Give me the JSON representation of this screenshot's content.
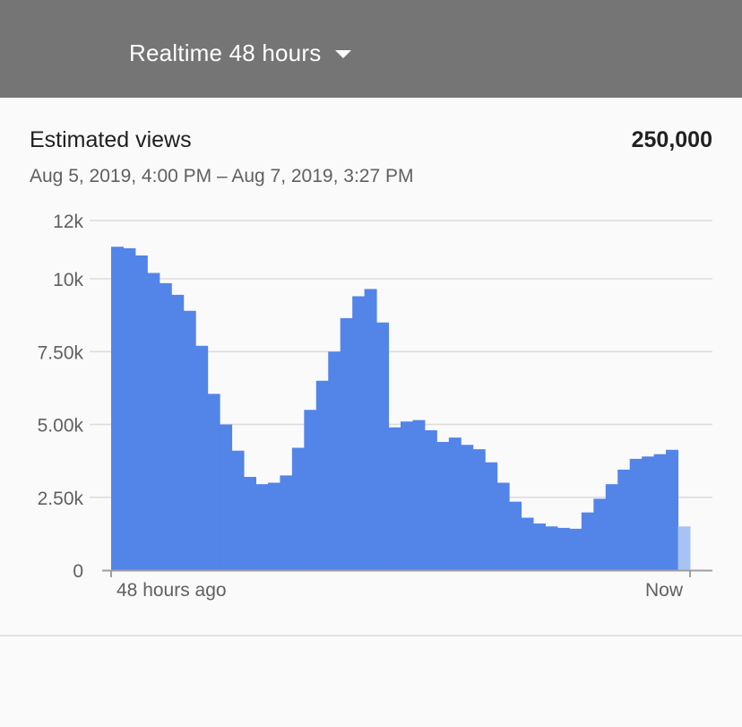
{
  "header": {
    "period_label": "Realtime 48 hours",
    "background_color": "#757575"
  },
  "card": {
    "title": "Estimated views",
    "total": "250,000",
    "range": "Aug 5, 2019, 4:00 PM – Aug 7, 2019, 3:27 PM"
  },
  "chart_data": {
    "type": "bar",
    "ylim": [
      0,
      12000
    ],
    "y_ticks": [
      {
        "value": 0,
        "label": "0"
      },
      {
        "value": 2500,
        "label": "2.50k"
      },
      {
        "value": 5000,
        "label": "5.00k"
      },
      {
        "value": 7500,
        "label": "7.50k"
      },
      {
        "value": 10000,
        "label": "10k"
      },
      {
        "value": 12000,
        "label": "12k"
      }
    ],
    "x_labels": {
      "start": "48 hours ago",
      "end": "Now"
    },
    "grid": true,
    "bar_color": "#5384e8",
    "partial_bar_color": "#a8c3f3",
    "values": [
      11100,
      11050,
      10800,
      10200,
      9850,
      9450,
      8900,
      7700,
      6050,
      5000,
      4100,
      3200,
      2950,
      3000,
      3250,
      4200,
      5500,
      6500,
      7500,
      8650,
      9400,
      9650,
      8500,
      4900,
      5100,
      5150,
      4800,
      4400,
      4550,
      4300,
      4150,
      3700,
      3000,
      2350,
      1800,
      1600,
      1500,
      1450,
      1420,
      1980,
      2450,
      2950,
      3450,
      3820,
      3900,
      3980,
      4130,
      1500
    ],
    "partial_last": true
  }
}
